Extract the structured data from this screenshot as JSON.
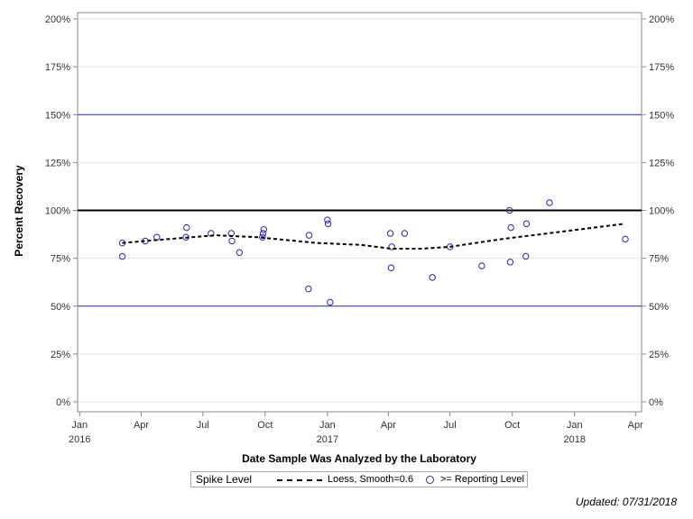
{
  "chart_data": {
    "type": "scatter",
    "xlabel": "Date Sample Was Analyzed by the Laboratory",
    "ylabel": "Percent Recovery",
    "ylim": [
      0,
      200
    ],
    "xlim": [
      "2015-12-29",
      "2018-04-10"
    ],
    "y_ticks": [
      0,
      25,
      50,
      75,
      100,
      125,
      150,
      175,
      200
    ],
    "y_tick_labels": [
      "0%",
      "25%",
      "50%",
      "75%",
      "100%",
      "125%",
      "150%",
      "175%",
      "200%"
    ],
    "x_ticks": [
      {
        "date": "2016-01-01",
        "label": "Jan",
        "year": "2016"
      },
      {
        "date": "2016-04-01",
        "label": "Apr",
        "year": ""
      },
      {
        "date": "2016-07-01",
        "label": "Jul",
        "year": ""
      },
      {
        "date": "2016-10-01",
        "label": "Oct",
        "year": ""
      },
      {
        "date": "2017-01-01",
        "label": "Jan",
        "year": "2017"
      },
      {
        "date": "2017-04-01",
        "label": "Apr",
        "year": ""
      },
      {
        "date": "2017-07-01",
        "label": "Jul",
        "year": ""
      },
      {
        "date": "2017-10-01",
        "label": "Oct",
        "year": ""
      },
      {
        "date": "2018-01-01",
        "label": "Jan",
        "year": "2018"
      },
      {
        "date": "2018-04-01",
        "label": "Apr",
        "year": ""
      }
    ],
    "reference_lines": [
      {
        "y": 100,
        "color": "#000000",
        "style": "solid-thick"
      },
      {
        "y": 150,
        "color": "#2a2aa5",
        "style": "solid"
      },
      {
        "y": 50,
        "color": "#2a2aa5",
        "style": "solid"
      }
    ],
    "grid": true,
    "series": [
      {
        "name": ">= Reporting Level",
        "type": "scatter",
        "color": "#2a2aa5",
        "points": [
          {
            "x": "2016-03-04",
            "y": 83
          },
          {
            "x": "2016-03-04",
            "y": 76
          },
          {
            "x": "2016-04-07",
            "y": 84
          },
          {
            "x": "2016-04-24",
            "y": 86
          },
          {
            "x": "2016-06-06",
            "y": 86
          },
          {
            "x": "2016-06-07",
            "y": 91
          },
          {
            "x": "2016-07-13",
            "y": 88
          },
          {
            "x": "2016-08-12",
            "y": 88
          },
          {
            "x": "2016-08-13",
            "y": 84
          },
          {
            "x": "2016-08-24",
            "y": 78
          },
          {
            "x": "2016-09-27",
            "y": 86
          },
          {
            "x": "2016-09-28",
            "y": 88
          },
          {
            "x": "2016-09-29",
            "y": 90
          },
          {
            "x": "2016-12-04",
            "y": 59
          },
          {
            "x": "2016-12-05",
            "y": 87
          },
          {
            "x": "2017-01-01",
            "y": 95
          },
          {
            "x": "2017-01-02",
            "y": 93
          },
          {
            "x": "2017-01-05",
            "y": 52
          },
          {
            "x": "2017-04-04",
            "y": 88
          },
          {
            "x": "2017-04-05",
            "y": 70
          },
          {
            "x": "2017-04-06",
            "y": 81
          },
          {
            "x": "2017-04-25",
            "y": 88
          },
          {
            "x": "2017-06-05",
            "y": 65
          },
          {
            "x": "2017-07-01",
            "y": 81
          },
          {
            "x": "2017-08-17",
            "y": 71
          },
          {
            "x": "2017-09-27",
            "y": 100
          },
          {
            "x": "2017-09-28",
            "y": 73
          },
          {
            "x": "2017-09-29",
            "y": 91
          },
          {
            "x": "2017-10-21",
            "y": 76
          },
          {
            "x": "2017-10-22",
            "y": 93
          },
          {
            "x": "2017-11-25",
            "y": 104
          },
          {
            "x": "2018-03-17",
            "y": 85
          }
        ]
      },
      {
        "name": "Loess, Smooth=0.6",
        "type": "line",
        "style": "dashed",
        "color": "#000000",
        "points": [
          {
            "x": "2016-03-04",
            "y": 83
          },
          {
            "x": "2016-05-10",
            "y": 85
          },
          {
            "x": "2016-07-20",
            "y": 87
          },
          {
            "x": "2016-09-20",
            "y": 86
          },
          {
            "x": "2016-12-15",
            "y": 83
          },
          {
            "x": "2017-02-20",
            "y": 82
          },
          {
            "x": "2017-04-05",
            "y": 80
          },
          {
            "x": "2017-05-20",
            "y": 80
          },
          {
            "x": "2017-07-01",
            "y": 81
          },
          {
            "x": "2017-09-15",
            "y": 85
          },
          {
            "x": "2017-12-15",
            "y": 89
          },
          {
            "x": "2018-03-15",
            "y": 93
          }
        ]
      }
    ]
  },
  "legend": {
    "title": "Spike Level",
    "loess_label": "Loess, Smooth=0.6",
    "marker_label": ">= Reporting Level"
  },
  "footer": {
    "updated": "Updated: 07/31/2018"
  }
}
